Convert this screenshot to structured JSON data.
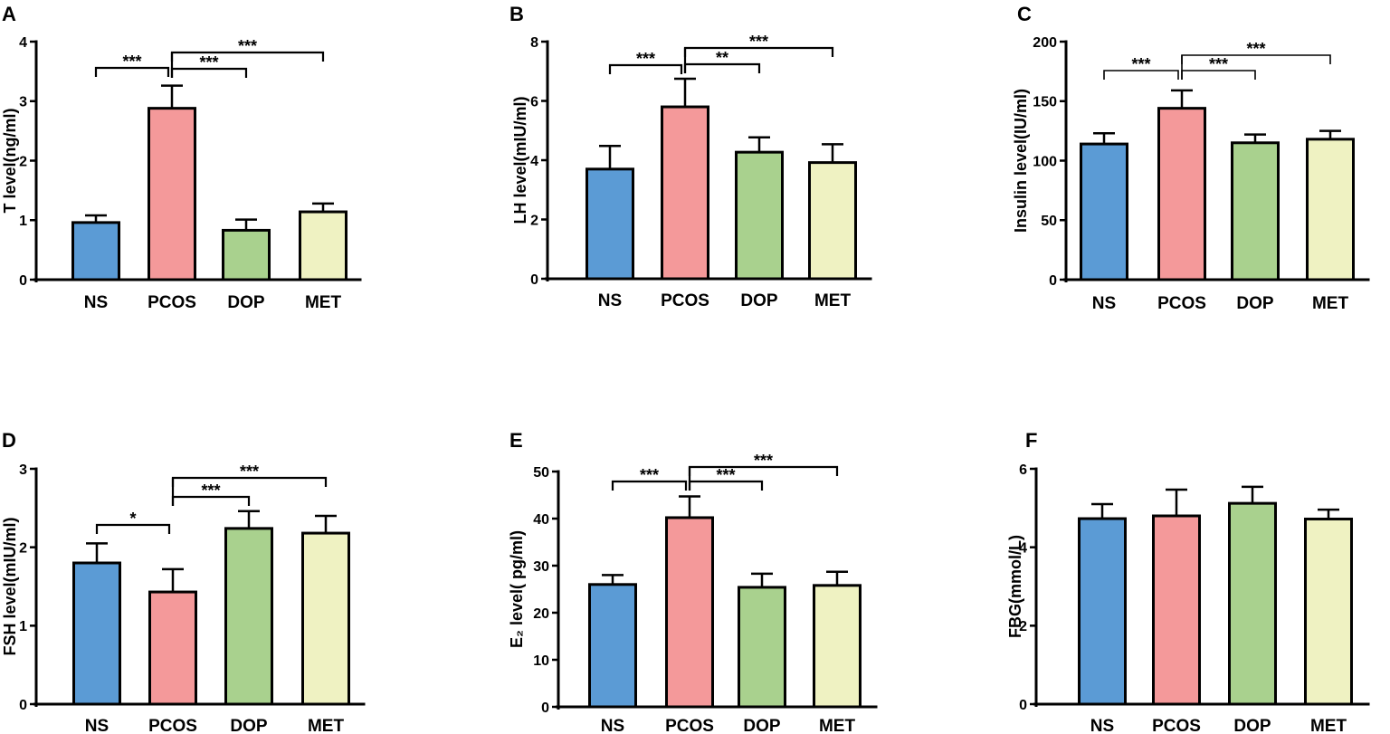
{
  "bar_colors": [
    "#5b9bd5",
    "#f4999a",
    "#a9d18e",
    "#eff2c2"
  ],
  "chart_data": [
    {
      "panel": "A",
      "type": "bar",
      "categories": [
        "NS",
        "PCOS",
        "DOP",
        "MET"
      ],
      "values": [
        0.96,
        2.88,
        0.83,
        1.14
      ],
      "errors": [
        0.12,
        0.38,
        0.18,
        0.14
      ],
      "ylabel": "T level(ng/ml)",
      "ylim": [
        0,
        4
      ],
      "yticks": [
        0,
        1,
        2,
        3,
        4
      ],
      "grid": false,
      "significance": [
        {
          "from": 0,
          "to": 1,
          "label": "***"
        },
        {
          "from": 1,
          "to": 2,
          "label": "***"
        },
        {
          "from": 1,
          "to": 3,
          "label": "***"
        }
      ]
    },
    {
      "panel": "B",
      "type": "bar",
      "categories": [
        "NS",
        "PCOS",
        "DOP",
        "MET"
      ],
      "values": [
        3.7,
        5.8,
        4.27,
        3.92
      ],
      "errors": [
        0.78,
        0.95,
        0.5,
        0.62
      ],
      "ylabel": "LH level(mIU/ml)",
      "ylim": [
        0,
        8
      ],
      "yticks": [
        0,
        2,
        4,
        6,
        8
      ],
      "grid": false,
      "significance": [
        {
          "from": 0,
          "to": 1,
          "label": "***"
        },
        {
          "from": 1,
          "to": 2,
          "label": "**"
        },
        {
          "from": 1,
          "to": 3,
          "label": "***"
        }
      ]
    },
    {
      "panel": "C",
      "type": "bar",
      "categories": [
        "NS",
        "PCOS",
        "DOP",
        "MET"
      ],
      "values": [
        114,
        144,
        115,
        118
      ],
      "errors": [
        9,
        15,
        7,
        7
      ],
      "ylabel": "Insulin level(IU/ml)",
      "ylim": [
        0,
        200
      ],
      "yticks": [
        0,
        50,
        100,
        150,
        200
      ],
      "grid": false,
      "significance": [
        {
          "from": 0,
          "to": 1,
          "label": "***"
        },
        {
          "from": 1,
          "to": 2,
          "label": "***"
        },
        {
          "from": 1,
          "to": 3,
          "label": "***"
        }
      ]
    },
    {
      "panel": "D",
      "type": "bar",
      "categories": [
        "NS",
        "PCOS",
        "DOP",
        "MET"
      ],
      "values": [
        1.8,
        1.43,
        2.24,
        2.18
      ],
      "errors": [
        0.25,
        0.29,
        0.22,
        0.22
      ],
      "ylabel": "FSH level(mIU/ml)",
      "ylim": [
        0,
        3
      ],
      "yticks": [
        0,
        1,
        2,
        3
      ],
      "grid": false,
      "significance": [
        {
          "from": 0,
          "to": 1,
          "label": "*"
        },
        {
          "from": 1,
          "to": 2,
          "label": "***"
        },
        {
          "from": 1,
          "to": 3,
          "label": "***"
        }
      ]
    },
    {
      "panel": "E",
      "type": "bar",
      "categories": [
        "NS",
        "PCOS",
        "DOP",
        "MET"
      ],
      "values": [
        26.0,
        40.2,
        25.4,
        25.8
      ],
      "errors": [
        2.0,
        4.5,
        2.9,
        2.9
      ],
      "ylabel": "E₂ level( pg/ml)",
      "ylim": [
        0,
        50
      ],
      "yticks": [
        0,
        10,
        20,
        30,
        40,
        50
      ],
      "grid": false,
      "significance": [
        {
          "from": 0,
          "to": 1,
          "label": "***"
        },
        {
          "from": 1,
          "to": 2,
          "label": "***"
        },
        {
          "from": 1,
          "to": 3,
          "label": "***"
        }
      ]
    },
    {
      "panel": "F",
      "type": "bar",
      "categories": [
        "NS",
        "PCOS",
        "DOP",
        "MET"
      ],
      "values": [
        4.73,
        4.8,
        5.12,
        4.72
      ],
      "errors": [
        0.37,
        0.67,
        0.42,
        0.24
      ],
      "ylabel": "FBG(mmol/L)",
      "ylim": [
        0,
        6
      ],
      "yticks": [
        0,
        2,
        4,
        6
      ],
      "grid": false,
      "significance": []
    }
  ]
}
